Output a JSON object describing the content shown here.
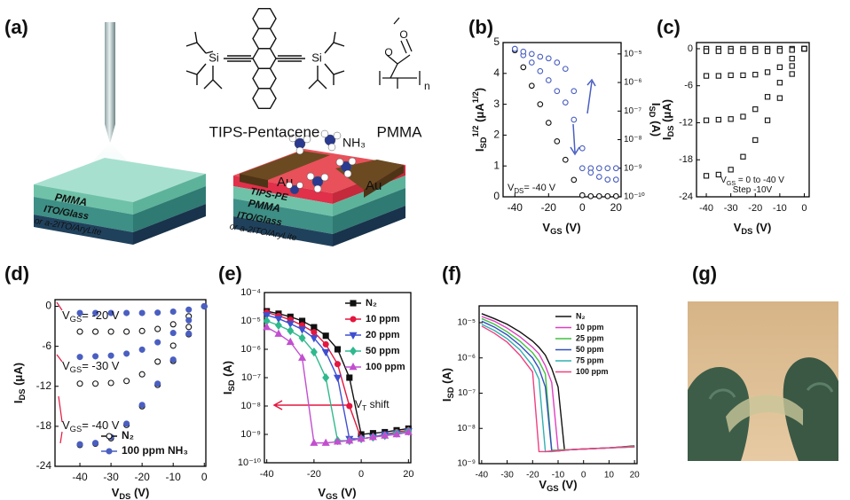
{
  "schematic": {
    "panel": "(a)",
    "tips_label": "TIPS-Pentacene",
    "pmma_label": "PMMA",
    "si": "Si",
    "o": "O",
    "n": "n",
    "nh3": "NH₃",
    "au": "Au",
    "left_layers": [
      "PMMA",
      "ITO/Glass",
      "or a-2ITO/AryLite"
    ],
    "right_layers": [
      "TIPS-PE",
      "PMMA",
      "ITO/Glass",
      "or a-2ITO/AryLite"
    ]
  },
  "photo": {
    "panel": "(g)"
  },
  "chart_data": [
    {
      "panel": "(b)",
      "type": "line",
      "connect": false,
      "x": [
        -40,
        -35,
        -30,
        -25,
        -20,
        -15,
        -10,
        -5,
        0,
        5,
        10,
        15,
        20
      ],
      "xlim": [
        -47,
        23
      ],
      "xticks": [
        -40,
        -20,
        0,
        20
      ],
      "ylim": [
        0,
        5
      ],
      "yticks": [
        0,
        1,
        2,
        3,
        4,
        5
      ],
      "y2log": true,
      "y2lim": [
        1e-10,
        2.5e-05
      ],
      "y2ticks": [
        {
          "value": 1e-10,
          "label": "10⁻¹⁰"
        },
        {
          "value": 1e-09,
          "label": "10⁻⁹"
        },
        {
          "value": 1e-08,
          "label": "10⁻⁸"
        },
        {
          "value": 1e-07,
          "label": "10⁻⁷"
        },
        {
          "value": 1e-06,
          "label": "10⁻⁶"
        },
        {
          "value": 1e-05,
          "label": "10⁻⁵"
        }
      ],
      "x_label": [
        "V",
        {
          "sub": "GS"
        },
        " (V)"
      ],
      "y_label": [
        "I",
        {
          "sub": "SD"
        },
        {
          "sup": "1/2"
        },
        " (μA",
        {
          "sup": "1/2"
        },
        ")"
      ],
      "y2_label": [
        "I",
        {
          "sub": "SD"
        },
        " (A)"
      ],
      "annotations": [
        [
          "V",
          {
            "sub": "DS"
          },
          "= -40 V"
        ]
      ],
      "series": [
        {
          "color": "#111111",
          "marker": "circle",
          "filled": false,
          "values": [
            4.75,
            4.2,
            3.6,
            3.0,
            2.4,
            1.8,
            1.2,
            0.55,
            0.05,
            0.02,
            0.02,
            0.02,
            0.02
          ]
        },
        {
          "color": "#4a5fc1",
          "marker": "circle",
          "filled": false,
          "axis": "y2",
          "values": [
            1.5e-05,
            9e-06,
            5e-06,
            2.5e-06,
            1.2e-06,
            5e-07,
            2e-07,
            5e-08,
            1e-09,
            1e-09,
            1e-09,
            1e-09,
            1e-09
          ]
        },
        {
          "color": "#4a5fc1",
          "marker": "circle",
          "filled": false,
          "axis": "y2",
          "values": [
            1.5e-05,
            1.2e-05,
            1e-05,
            8e-06,
            7e-06,
            5e-06,
            3e-06,
            5e-07,
            5e-09,
            7e-10,
            5e-10,
            4e-10,
            4e-10
          ]
        }
      ]
    },
    {
      "panel": "(c)",
      "type": "line",
      "connect": false,
      "x": [
        -40,
        -35,
        -30,
        -25,
        -20,
        -15,
        -10,
        -5,
        0
      ],
      "xlim": [
        -44,
        2
      ],
      "xticks": [
        -40,
        -30,
        -20,
        -10,
        0
      ],
      "ylim": [
        -24,
        1
      ],
      "yticks": [
        0,
        -6,
        -12,
        -18,
        -24
      ],
      "x_label": [
        "V",
        {
          "sub": "DS"
        },
        " (V)"
      ],
      "y_label": [
        "I",
        {
          "sub": "DS"
        },
        " (μA)"
      ],
      "annotations": [
        [
          "V",
          {
            "sub": "GS"
          },
          " = 0 to -40 V"
        ],
        [
          "Step -10V"
        ]
      ],
      "series": [
        {
          "color": "#111111",
          "marker": "square",
          "filled": false,
          "curves": [
            [
              0,
              0,
              0,
              0,
              0,
              0,
              0,
              0,
              0
            ],
            [
              -0.4,
              -0.4,
              -0.4,
              -0.4,
              -0.4,
              -0.4,
              -0.35,
              -0.2,
              0
            ],
            [
              -4.4,
              -4.4,
              -4.3,
              -4.3,
              -4.2,
              -3.8,
              -3.0,
              -1.6,
              0
            ],
            [
              -11.6,
              -11.5,
              -11.4,
              -11.0,
              -9.8,
              -7.8,
              -5.5,
              -2.8,
              0
            ],
            [
              -20.6,
              -20.4,
              -19.6,
              -17.5,
              -14.8,
              -11.6,
              -8.0,
              -4.1,
              0
            ]
          ]
        }
      ]
    },
    {
      "panel": "(d)",
      "type": "line",
      "connect": false,
      "legend": "lower right",
      "x": [
        -40,
        -35,
        -30,
        -25,
        -20,
        -15,
        -10,
        -5,
        0
      ],
      "xlim": [
        -48,
        0.5
      ],
      "xticks": [
        -40,
        -30,
        -20,
        -10,
        0
      ],
      "ylim": [
        -24,
        1
      ],
      "yticks": [
        0,
        -6,
        -12,
        -18,
        -24
      ],
      "x_label": [
        "V",
        {
          "sub": "DS"
        },
        " (V)"
      ],
      "y_label": [
        "I",
        {
          "sub": "DS"
        },
        " (μA)"
      ],
      "annotations": [
        [
          "V",
          {
            "sub": "GS"
          },
          "= -20 V"
        ],
        [
          "V",
          {
            "sub": "GS"
          },
          "= -30 V"
        ],
        [
          "V",
          {
            "sub": "GS"
          },
          "= -40 V"
        ]
      ],
      "series": [
        {
          "name": "N₂",
          "color": "#111111",
          "marker": "circle",
          "filled": false,
          "curves": [
            [
              -3.8,
              -3.8,
              -3.8,
              -3.8,
              -3.7,
              -3.4,
              -2.7,
              -1.5,
              0
            ],
            [
              -11.6,
              -11.6,
              -11.5,
              -11.2,
              -10.2,
              -8.3,
              -5.9,
              -3.1,
              0
            ],
            [
              -20.8,
              -20.6,
              -19.8,
              -17.8,
              -15.0,
              -11.8,
              -8.2,
              -4.2,
              0
            ]
          ]
        },
        {
          "name": "100 ppm NH₃",
          "color": "#4a5fc1",
          "marker": "circle",
          "filled": true,
          "curves": [
            [
              -1.0,
              -1.0,
              -1.0,
              -1.0,
              -1.0,
              -0.95,
              -0.8,
              -0.5,
              0
            ],
            [
              -7.6,
              -7.5,
              -7.4,
              -7.1,
              -6.5,
              -5.4,
              -4.0,
              -2.1,
              0
            ],
            [
              -20.7,
              -20.5,
              -19.6,
              -17.6,
              -14.8,
              -11.6,
              -8.0,
              -4.1,
              0
            ]
          ]
        }
      ]
    },
    {
      "panel": "(e)",
      "type": "line",
      "connect": true,
      "legend": "upper right",
      "ylog": true,
      "x": [
        -40,
        -35,
        -30,
        -25,
        -20,
        -15,
        -10,
        -5,
        0,
        5,
        10,
        15,
        20
      ],
      "xlim": [
        -41,
        21
      ],
      "xticks": [
        -40,
        -20,
        0,
        20
      ],
      "ylim": [
        1e-10,
        0.0001
      ],
      "yticks": [
        {
          "value": 1e-10,
          "label": "10⁻¹⁰"
        },
        {
          "value": 1e-09,
          "label": "10⁻⁹"
        },
        {
          "value": 1e-08,
          "label": "10⁻⁸"
        },
        {
          "value": 1e-07,
          "label": "10⁻⁷"
        },
        {
          "value": 1e-06,
          "label": "10⁻⁶"
        },
        {
          "value": 1e-05,
          "label": "10⁻⁵"
        },
        {
          "value": 0.0001,
          "label": "10⁻⁴"
        }
      ],
      "x_label": [
        "V",
        {
          "sub": "GS"
        },
        " (V)"
      ],
      "y_label": [
        "I",
        {
          "sub": "SD"
        },
        " (A)"
      ],
      "annotations": [
        [
          "V",
          {
            "sub": "T"
          },
          " shift"
        ]
      ],
      "series": [
        {
          "name": "N₂",
          "color": "#111111",
          "marker": "square",
          "filled": true,
          "values": [
            2.2e-05,
            1.8e-05,
            1.4e-05,
            1e-05,
            6e-06,
            3e-06,
            1e-06,
            1e-07,
            1e-09,
            1.1e-09,
            1.2e-09,
            1.4e-09,
            1.6e-09
          ]
        },
        {
          "name": "10 ppm",
          "color": "#e3173f",
          "marker": "circle",
          "filled": true,
          "values": [
            2e-05,
            1.5e-05,
            1.1e-05,
            7e-06,
            4e-06,
            1.5e-06,
            3e-07,
            1e-08,
            7e-10,
            8e-10,
            1e-09,
            1.2e-09,
            1.4e-09
          ]
        },
        {
          "name": "20 ppm",
          "color": "#3e4fd0",
          "marker": "triangle-down",
          "filled": true,
          "values": [
            1.6e-05,
            1.2e-05,
            8e-06,
            5e-06,
            2.5e-06,
            8e-07,
            1e-07,
            7e-10,
            7e-10,
            8e-10,
            1e-09,
            1.1e-09,
            1.3e-09
          ]
        },
        {
          "name": "50 ppm",
          "color": "#2fb98d",
          "marker": "diamond",
          "filled": true,
          "values": [
            1e-05,
            7e-06,
            4.5e-06,
            2.5e-06,
            8e-07,
            1e-07,
            6e-10,
            6e-10,
            7e-10,
            8e-10,
            9e-10,
            1.1e-09,
            1.3e-09
          ]
        },
        {
          "name": "100 ppm",
          "color": "#c24fd0",
          "marker": "triangle",
          "filled": true,
          "values": [
            6e-06,
            3.5e-06,
            1.8e-06,
            5e-07,
            5e-10,
            5e-10,
            5.5e-10,
            6e-10,
            7e-10,
            8e-10,
            9e-10,
            1e-09,
            1.2e-09
          ]
        }
      ]
    },
    {
      "panel": "(f)",
      "type": "line",
      "connect": true,
      "legend": "upper right",
      "ylog": true,
      "x": [
        -40,
        -35,
        -30,
        -25,
        -20,
        -17.5,
        -15,
        -12.5,
        -10,
        -7.5,
        -5,
        0,
        10,
        20
      ],
      "xlim": [
        -41,
        21
      ],
      "xticks": [
        -40,
        -30,
        -20,
        -10,
        0,
        10,
        20
      ],
      "ylim": [
        1e-09,
        3e-05
      ],
      "yticks": [
        {
          "value": 1e-09,
          "label": "10⁻⁹"
        },
        {
          "value": 1e-08,
          "label": "10⁻⁸"
        },
        {
          "value": 1e-07,
          "label": "10⁻⁷"
        },
        {
          "value": 1e-06,
          "label": "10⁻⁶"
        },
        {
          "value": 1e-05,
          "label": "10⁻⁵"
        }
      ],
      "x_label": [
        "V",
        {
          "sub": "GS"
        },
        " (V)"
      ],
      "y_label": [
        "I",
        {
          "sub": "SD"
        },
        " (A)"
      ],
      "annotations": [],
      "series": [
        {
          "name": "N₂",
          "color": "#111111",
          "values": [
            1.8e-05,
            1.3e-05,
            9e-06,
            5.5e-06,
            3e-06,
            2e-06,
            1.2e-06,
            5e-07,
            1.5e-07,
            2.5e-09,
            2.5e-09,
            2.6e-09,
            2.8e-09,
            3.2e-09
          ]
        },
        {
          "name": "10 ppm",
          "color": "#e040c0",
          "values": [
            1.5e-05,
            1.1e-05,
            7e-06,
            4e-06,
            2e-06,
            1.3e-06,
            6e-07,
            2e-07,
            2.5e-09,
            2.4e-09,
            2.5e-09,
            2.6e-09,
            2.8e-09,
            3.1e-09
          ]
        },
        {
          "name": "25 ppm",
          "color": "#40c040",
          "values": [
            1.3e-05,
            9e-06,
            5.5e-06,
            3e-06,
            1.4e-06,
            8e-07,
            3.5e-07,
            2.4e-09,
            2.4e-09,
            2.5e-09,
            2.5e-09,
            2.6e-09,
            2.8e-09,
            3.1e-09
          ]
        },
        {
          "name": "50 ppm",
          "color": "#3050c0",
          "values": [
            1.1e-05,
            7.5e-06,
            4.5e-06,
            2.3e-06,
            1e-06,
            5e-07,
            1.5e-07,
            2.3e-09,
            2.3e-09,
            2.4e-09,
            2.5e-09,
            2.6e-09,
            2.8e-09,
            3e-09
          ]
        },
        {
          "name": "75 ppm",
          "color": "#30b0b0",
          "values": [
            9e-06,
            6e-06,
            3.5e-06,
            1.7e-06,
            6e-07,
            2.5e-07,
            2.2e-09,
            2.2e-09,
            2.3e-09,
            2.4e-09,
            2.5e-09,
            2.6e-09,
            2.8e-09,
            3e-09
          ]
        },
        {
          "name": "100 ppm",
          "color": "#f04080",
          "values": [
            8e-06,
            5e-06,
            2.8e-06,
            1.2e-06,
            4e-07,
            2.2e-09,
            2.2e-09,
            2.3e-09,
            2.3e-09,
            2.4e-09,
            2.5e-09,
            2.6e-09,
            2.8e-09,
            3e-09
          ]
        }
      ]
    }
  ]
}
